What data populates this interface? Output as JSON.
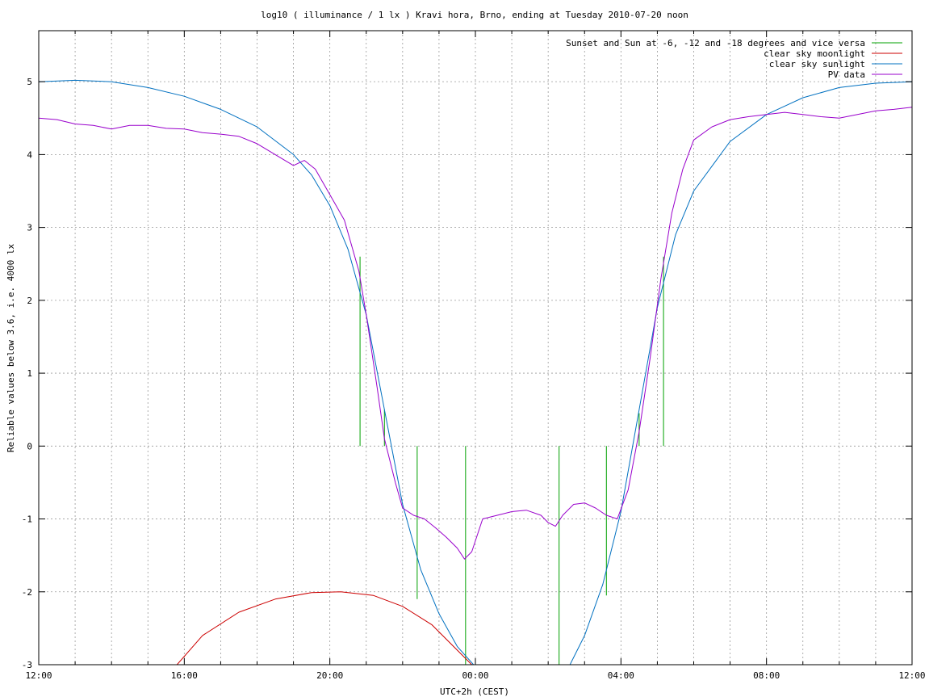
{
  "chart_data": {
    "type": "line",
    "title": "log10 ( illuminance / 1 lx ) Kravi hora, Brno, ending at Tuesday 2010-07-20 noon",
    "xlabel": "UTC+2h (CEST)",
    "ylabel": "Reliable values below 3.6, i.e. 4000 lx",
    "xlim": [
      12,
      36
    ],
    "ylim": [
      -3,
      5.7
    ],
    "x_ticks": [
      12,
      16,
      20,
      24,
      28,
      32,
      36
    ],
    "x_tick_labels": [
      "12:00",
      "16:00",
      "20:00",
      "00:00",
      "04:00",
      "08:00",
      "12:00"
    ],
    "y_ticks": [
      -3,
      -2,
      -1,
      0,
      1,
      2,
      3,
      4,
      5
    ],
    "y_tick_labels": [
      "-3",
      "-2",
      "-1",
      "0",
      "1",
      "2",
      "3",
      "4",
      "5"
    ],
    "grid": true,
    "legend_position": "top-right",
    "series": [
      {
        "name": "Sunset and Sun at -6, -12 and -18 degrees and vice versa",
        "color": "#00a000",
        "style": "vertical-markers",
        "markers": [
          {
            "x": 20.83,
            "y0": 0,
            "y1": 2.6
          },
          {
            "x": 21.5,
            "y0": 0,
            "y1": 0.5
          },
          {
            "x": 22.4,
            "y0": 0,
            "y1": -2.1
          },
          {
            "x": 23.73,
            "y0": 0,
            "y1": -3
          },
          {
            "x": 26.3,
            "y0": 0,
            "y1": -3
          },
          {
            "x": 27.6,
            "y0": 0,
            "y1": -2.05
          },
          {
            "x": 28.5,
            "y0": 0,
            "y1": 0.45
          },
          {
            "x": 29.17,
            "y0": 0,
            "y1": 2.6
          }
        ]
      },
      {
        "name": "clear sky moonlight",
        "color": "#cc0000",
        "x": [
          15.8,
          16.5,
          17.5,
          18.5,
          19.5,
          20.3,
          21.2,
          22.0,
          22.8,
          23.4,
          23.9
        ],
        "y": [
          -3.0,
          -2.6,
          -2.28,
          -2.1,
          -2.01,
          -2.0,
          -2.05,
          -2.2,
          -2.45,
          -2.75,
          -3.0
        ]
      },
      {
        "name": "clear sky sunlight",
        "color": "#0070c0",
        "x": [
          12.0,
          13.0,
          14.0,
          15.0,
          16.0,
          17.0,
          18.0,
          19.0,
          19.5,
          20.0,
          20.5,
          21.0,
          21.5,
          22.0,
          22.5,
          23.0,
          23.5,
          23.95,
          26.6,
          27.0,
          27.5,
          28.0,
          28.5,
          29.0,
          29.5,
          30.0,
          31.0,
          32.0,
          33.0,
          34.0,
          35.0,
          36.0
        ],
        "y": [
          5.0,
          5.02,
          5.0,
          4.92,
          4.8,
          4.62,
          4.38,
          4.0,
          3.72,
          3.3,
          2.7,
          1.8,
          0.5,
          -0.8,
          -1.7,
          -2.3,
          -2.75,
          -3.0,
          -3.0,
          -2.6,
          -1.9,
          -0.9,
          0.5,
          1.9,
          2.9,
          3.5,
          4.18,
          4.55,
          4.78,
          4.92,
          4.98,
          5.0
        ]
      },
      {
        "name": "PV data",
        "color": "#9900cc",
        "x": [
          12.0,
          12.5,
          13.0,
          13.5,
          14.0,
          14.5,
          15.0,
          15.5,
          16.0,
          16.5,
          17.0,
          17.5,
          18.0,
          18.5,
          19.0,
          19.3,
          19.6,
          20.0,
          20.4,
          20.8,
          21.0,
          21.3,
          21.5,
          21.8,
          22.0,
          22.3,
          22.6,
          22.9,
          23.2,
          23.5,
          23.7,
          23.9,
          24.2,
          24.6,
          25.0,
          25.4,
          25.8,
          26.0,
          26.2,
          26.4,
          26.7,
          27.0,
          27.3,
          27.6,
          27.9,
          28.2,
          28.5,
          28.8,
          29.1,
          29.4,
          29.7,
          30.0,
          30.5,
          31.0,
          31.5,
          32.0,
          32.5,
          33.0,
          33.5,
          34.0,
          34.5,
          35.0,
          35.5,
          36.0
        ],
        "y": [
          4.5,
          4.48,
          4.42,
          4.4,
          4.35,
          4.4,
          4.4,
          4.36,
          4.35,
          4.3,
          4.28,
          4.25,
          4.15,
          4.0,
          3.85,
          3.92,
          3.8,
          3.45,
          3.1,
          2.4,
          1.8,
          0.8,
          0.1,
          -0.5,
          -0.85,
          -0.95,
          -1.0,
          -1.12,
          -1.25,
          -1.4,
          -1.55,
          -1.45,
          -1.0,
          -0.95,
          -0.9,
          -0.88,
          -0.95,
          -1.05,
          -1.1,
          -0.95,
          -0.8,
          -0.78,
          -0.85,
          -0.95,
          -1.0,
          -0.6,
          0.2,
          1.2,
          2.3,
          3.2,
          3.8,
          4.2,
          4.38,
          4.48,
          4.52,
          4.55,
          4.58,
          4.55,
          4.52,
          4.5,
          4.55,
          4.6,
          4.62,
          4.65
        ]
      }
    ]
  }
}
